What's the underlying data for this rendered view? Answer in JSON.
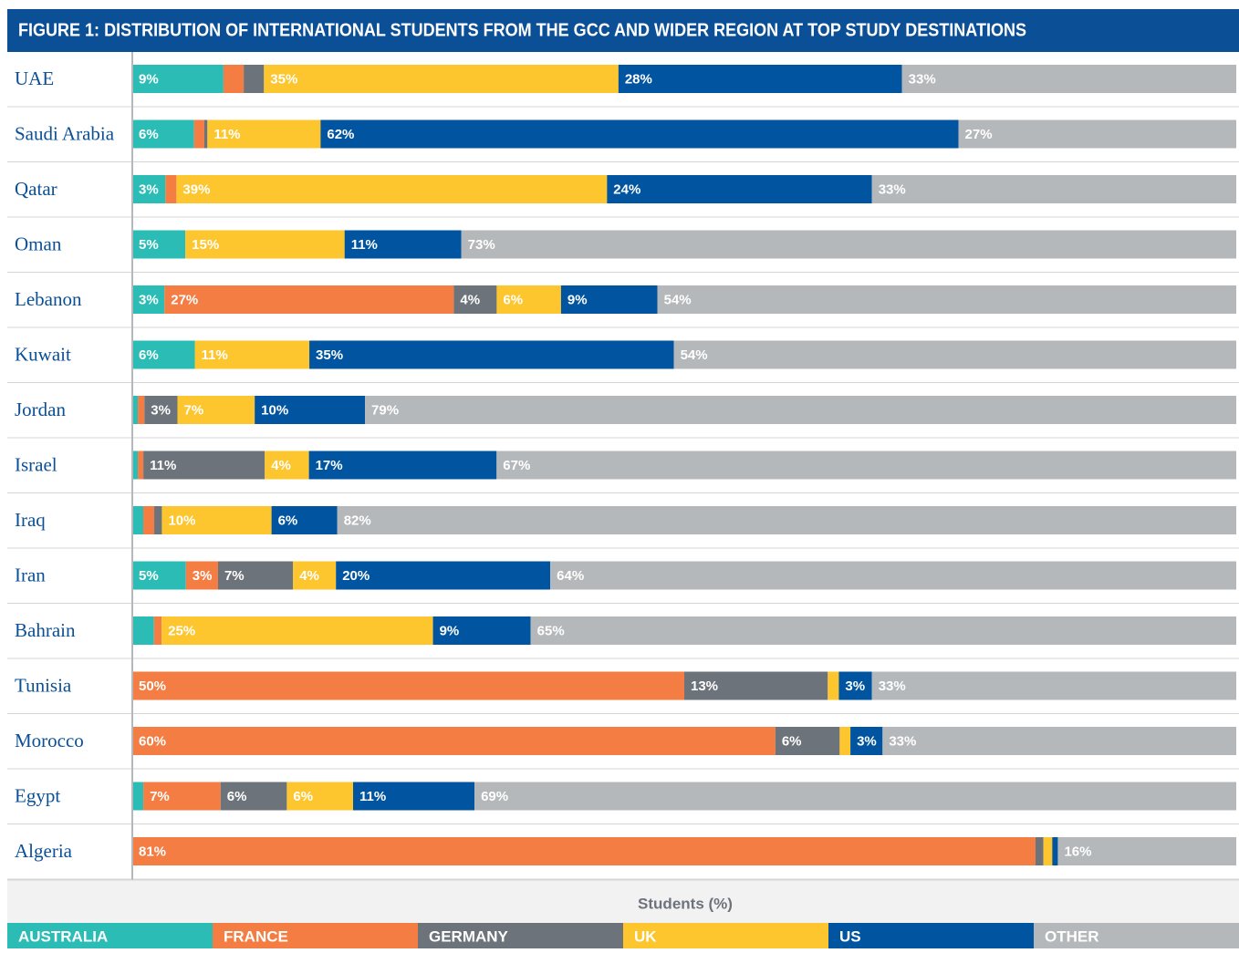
{
  "chart_data": {
    "type": "stacked_bar_horizontal",
    "title": "FIGURE 1: DISTRIBUTION OF INTERNATIONAL STUDENTS FROM THE GCC AND WIDER REGION AT TOP STUDY DESTINATIONS",
    "x_label": "Students (%)",
    "categories": [
      "UAE",
      "Saudi Arabia",
      "Qatar",
      "Oman",
      "Lebanon",
      "Kuwait",
      "Jordan",
      "Israel",
      "Iraq",
      "Iran",
      "Bahrain",
      "Tunisia",
      "Morocco",
      "Egypt",
      "Algeria"
    ],
    "series": [
      {
        "name": "AUSTRALIA",
        "color": "#2bbdb5",
        "values": [
          9,
          6,
          3,
          5,
          3,
          6,
          0.5,
          0.5,
          1,
          5,
          2,
          0,
          0,
          1,
          0
        ],
        "value_labels": [
          "9%",
          "6%",
          "3%",
          "5%",
          "3%",
          "6%",
          null,
          null,
          null,
          "5%",
          null,
          null,
          null,
          null,
          null
        ]
      },
      {
        "name": "FRANCE",
        "color": "#f37d43",
        "values": [
          2,
          1,
          1,
          0,
          27,
          0,
          0.6,
          0.5,
          1,
          3,
          0.7,
          50,
          60,
          7,
          81
        ],
        "value_labels": [
          null,
          null,
          null,
          null,
          "27%",
          null,
          null,
          null,
          null,
          "3%",
          null,
          "50%",
          "60%",
          "7%",
          "81%"
        ]
      },
      {
        "name": "GERMANY",
        "color": "#6d737b",
        "values": [
          2,
          0.3,
          0,
          0,
          4,
          0,
          3,
          11,
          0.7,
          7,
          0,
          13,
          6,
          6,
          0.7
        ],
        "value_labels": [
          null,
          null,
          null,
          null,
          "4%",
          null,
          "3%",
          "11%",
          null,
          "7%",
          null,
          "13%",
          "6%",
          "6%",
          null
        ]
      },
      {
        "name": "UK",
        "color": "#fec62e",
        "values": [
          35,
          11,
          39,
          15,
          6,
          11,
          7,
          4,
          10,
          4,
          25,
          1,
          1,
          6,
          0.8
        ],
        "value_labels": [
          "35%",
          "11%",
          "39%",
          "15%",
          "6%",
          "11%",
          "7%",
          "4%",
          "10%",
          "4%",
          "25%",
          null,
          null,
          "6%",
          null
        ]
      },
      {
        "name": "US",
        "color": "#0155a0",
        "values": [
          28,
          62,
          24,
          11,
          9,
          35,
          10,
          17,
          6,
          20,
          9,
          3,
          3,
          11,
          0.5
        ],
        "value_labels": [
          "28%",
          "62%",
          "24%",
          "11%",
          "9%",
          "35%",
          "10%",
          "17%",
          "6%",
          "20%",
          "9%",
          "3%",
          "3%",
          "11%",
          null
        ]
      },
      {
        "name": "OTHER",
        "color": "#b5b8bb",
        "values": [
          33,
          27,
          33,
          73,
          54,
          54,
          79,
          67,
          82,
          64,
          65,
          33,
          33,
          69,
          16
        ],
        "value_labels": [
          "33%",
          "27%",
          "33%",
          "73%",
          "54%",
          "54%",
          "79%",
          "67%",
          "82%",
          "64%",
          "65%",
          "33%",
          "33%",
          "69%",
          "16%"
        ]
      }
    ]
  }
}
